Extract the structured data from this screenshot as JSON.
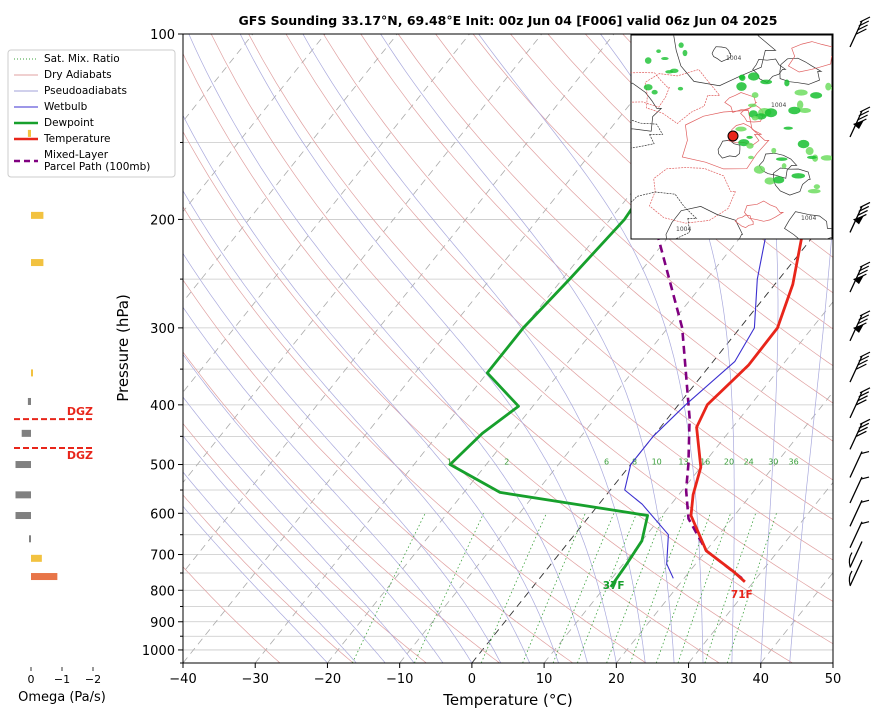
{
  "chart_data": {
    "type": "skew-t",
    "title": "GFS Sounding 33.17°N, 69.48°E Init: 00z Jun 04 [F006] valid 06z Jun 04 2025",
    "xlabel": "Temperature (°C)",
    "ylabel": "Pressure (hPa)",
    "xlim": [
      -40,
      50
    ],
    "ylim": [
      1050,
      100
    ],
    "x_ticks": [
      "−40",
      "−30",
      "−20",
      "−10",
      "0",
      "10",
      "20",
      "30",
      "40",
      "50"
    ],
    "x_tick_values": [
      -40,
      -30,
      -20,
      -10,
      0,
      10,
      20,
      30,
      40,
      50
    ],
    "y_ticks": [
      "100",
      "200",
      "300",
      "400",
      "500",
      "600",
      "700",
      "800",
      "900",
      "1000"
    ],
    "y_tick_values": [
      100,
      200,
      300,
      400,
      500,
      600,
      700,
      800,
      900,
      1000
    ],
    "y_scale": "log",
    "legend": {
      "placement": "upper-left, outside",
      "entries": [
        {
          "label": "Sat. Mix. Ratio",
          "color": "#3aa03a",
          "style": "dotted"
        },
        {
          "label": "Dry Adiabats",
          "color": "#e0a0a0",
          "style": "solid"
        },
        {
          "label": "Pseudoadiabats",
          "color": "#a0a0d8",
          "style": "solid"
        },
        {
          "label": "Wetbulb",
          "color": "#3b2fd0",
          "style": "solid"
        },
        {
          "label": "Dewpoint",
          "color": "#17a02c",
          "style": "thick"
        },
        {
          "label": "Temperature",
          "color": "#e8251a",
          "style": "thick"
        },
        {
          "label": "Mixed-Layer",
          "label2": "Parcel Path (100mb)",
          "color": "#800080",
          "style": "dashed"
        }
      ]
    },
    "temperature": {
      "name": "Temperature",
      "color": "#e8251a",
      "points": [
        [
          28.8,
          775
        ],
        [
          26,
          745
        ],
        [
          20,
          690
        ],
        [
          14,
          605
        ],
        [
          12,
          560
        ],
        [
          10,
          505
        ],
        [
          5,
          435
        ],
        [
          4,
          400
        ],
        [
          5.3,
          345
        ],
        [
          5.2,
          300
        ],
        [
          2.5,
          255
        ],
        [
          -3,
          200
        ],
        [
          -6,
          160
        ],
        [
          -6.2,
          130
        ],
        [
          -6.5,
          100
        ]
      ]
    },
    "dewpoint": {
      "name": "Dewpoint",
      "color": "#17a02c",
      "points": [
        [
          10.8,
          790
        ],
        [
          10.5,
          730
        ],
        [
          10,
          665
        ],
        [
          8,
          605
        ],
        [
          -15,
          555
        ],
        [
          -25,
          500
        ],
        [
          -24,
          445
        ],
        [
          -22,
          402
        ],
        [
          -30,
          355
        ],
        [
          -30,
          300
        ],
        [
          -29,
          250
        ],
        [
          -28,
          200
        ],
        [
          -29,
          160
        ],
        [
          -31,
          140
        ],
        [
          -27,
          100
        ]
      ]
    },
    "wetbulb": {
      "name": "Wetbulb",
      "color": "#3b2fd0",
      "points": [
        [
          18.5,
          765
        ],
        [
          16,
          725
        ],
        [
          13,
          650
        ],
        [
          6,
          580
        ],
        [
          2,
          550
        ],
        [
          0,
          500
        ],
        [
          0,
          450
        ],
        [
          1,
          400
        ],
        [
          3,
          340
        ],
        [
          2,
          300
        ],
        [
          -3,
          250
        ],
        [
          -8,
          200
        ],
        [
          -9,
          165
        ],
        [
          -10,
          100
        ]
      ]
    },
    "parcel": {
      "name": "Mixed-Layer Parcel Path (100mb)",
      "color": "#800080",
      "points": [
        [
          28,
          765
        ],
        [
          20,
          690
        ],
        [
          14,
          612
        ],
        [
          10.5,
          550
        ],
        [
          8,
          500
        ],
        [
          3,
          420
        ],
        [
          -8,
          300
        ],
        [
          -24,
          200
        ],
        [
          -40,
          100
        ]
      ]
    },
    "surface_labels": {
      "temperature": "71F",
      "dewpoint": "37F"
    },
    "mixing_ratio_labels": [
      "1",
      "2",
      "6",
      "8",
      "10",
      "13",
      "16",
      "20",
      "24",
      "30",
      "36"
    ],
    "dgz_labels": [
      "DGZ",
      "DGZ"
    ],
    "omega": {
      "xlabel": "Omega (Pa/s)",
      "x_ticks": [
        "0",
        "−1",
        "−2"
      ],
      "bars": [
        {
          "p": 145,
          "v": 0.1,
          "color": "#f2c240"
        },
        {
          "p": 197,
          "v": -0.4,
          "color": "#f2c240"
        },
        {
          "p": 235,
          "v": -0.4,
          "color": "#f2c240"
        },
        {
          "p": 355,
          "v": -0.05,
          "color": "#f2c240"
        },
        {
          "p": 395,
          "v": 0.1,
          "color": "#808080"
        },
        {
          "p": 445,
          "v": 0.3,
          "color": "#808080"
        },
        {
          "p": 500,
          "v": 0.5,
          "color": "#808080"
        },
        {
          "p": 560,
          "v": 0.5,
          "color": "#808080"
        },
        {
          "p": 605,
          "v": 0.5,
          "color": "#808080"
        },
        {
          "p": 660,
          "v": 0.05,
          "color": "#808080"
        },
        {
          "p": 710,
          "v": -0.35,
          "color": "#f2c240"
        },
        {
          "p": 760,
          "v": -0.85,
          "color": "#e87548"
        }
      ]
    },
    "wind_barbs": [
      {
        "p": 100
      },
      {
        "p": 140
      },
      {
        "p": 200
      },
      {
        "p": 250
      },
      {
        "p": 300
      },
      {
        "p": 350
      },
      {
        "p": 400
      },
      {
        "p": 450
      },
      {
        "p": 500
      },
      {
        "p": 550
      },
      {
        "p": 600
      },
      {
        "p": 650
      },
      {
        "p": 700
      },
      {
        "p": 750
      }
    ],
    "inset_map": {
      "marker_color": "#e8251a",
      "labels": [
        "1004",
        "1004",
        "1004",
        "1004"
      ]
    }
  }
}
